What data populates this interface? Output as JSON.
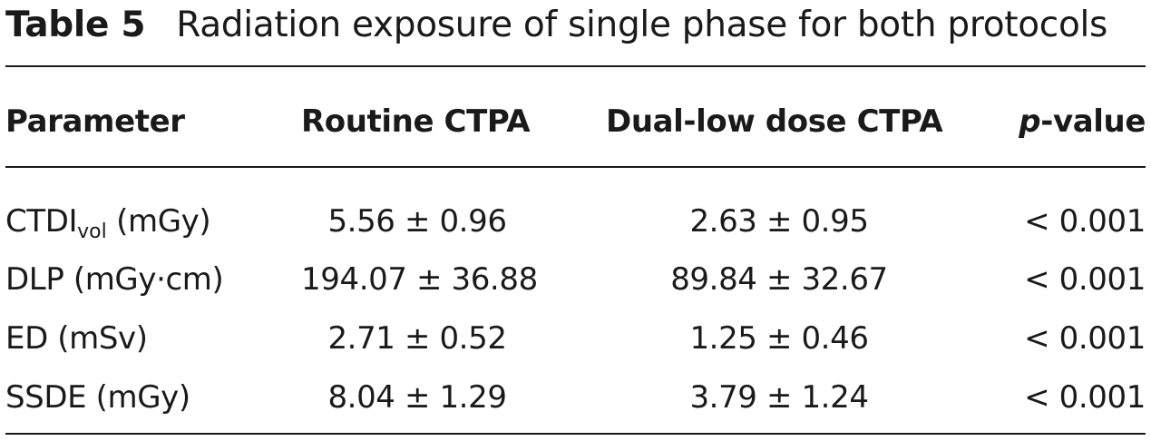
{
  "caption": {
    "label": "Table 5",
    "title": "Radiation exposure of single phase for both protocols"
  },
  "headers": {
    "parameter": "Parameter",
    "routine": "Routine CTPA",
    "dual_low": "Dual-low dose CTPA",
    "pvalue_italic": "p",
    "pvalue_rest": "-value"
  },
  "rows": [
    {
      "param_main": "CTDI",
      "param_sub": "vol",
      "param_unit": " (mGy)",
      "routine": "5.56 ± 0.96",
      "dual_low": "2.63 ± 0.95",
      "p": "< 0.001"
    },
    {
      "param": "DLP (mGy·cm)",
      "routine": "194.07 ± 36.88",
      "dual_low": "89.84 ± 32.67",
      "p": "< 0.001"
    },
    {
      "param": "ED (mSv)",
      "routine": "2.71 ± 0.52",
      "dual_low": "1.25 ± 0.46",
      "p": "< 0.001"
    },
    {
      "param": "SSDE (mGy)",
      "routine": "8.04 ± 1.29",
      "dual_low": "3.79 ± 1.24",
      "p": "< 0.001"
    }
  ]
}
